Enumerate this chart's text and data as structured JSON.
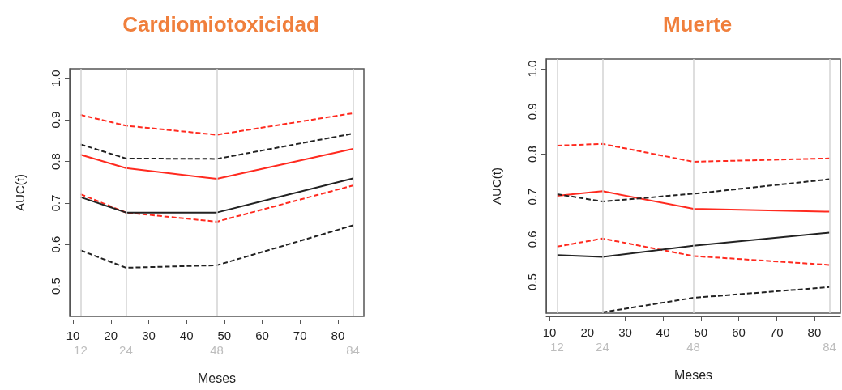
{
  "chart_data": [
    {
      "type": "line",
      "title": "Cardiomiotoxicidad",
      "xlabel": "Meses",
      "ylabel": "AUC(t)",
      "x": [
        12,
        24,
        48,
        84
      ],
      "xlim": [
        9.12,
        86.88
      ],
      "xticks": [
        10,
        20,
        30,
        40,
        50,
        60,
        70,
        80
      ],
      "ylim": [
        0.427,
        1.023
      ],
      "yticks": [
        0.5,
        0.6,
        0.7,
        0.8,
        0.9,
        {
          "value": 1.0,
          "label": "1.0"
        }
      ],
      "grid": false,
      "marker": "none",
      "ref_lines": [
        {
          "axis": "x",
          "value": 12,
          "label": "12",
          "color": "#d3d3d3"
        },
        {
          "axis": "x",
          "value": 24,
          "label": "24",
          "color": "#d3d3d3"
        },
        {
          "axis": "x",
          "value": 48,
          "label": "48",
          "color": "#d3d3d3"
        },
        {
          "axis": "x",
          "value": 84,
          "label": "84",
          "color": "#d3d3d3"
        },
        {
          "axis": "y",
          "value": 0.5,
          "color": "#333333",
          "line_style": "dotted"
        }
      ],
      "series": [
        {
          "color": "#ff2a1f",
          "line_style": "dashed",
          "values": [
            0.912,
            0.886,
            0.864,
            0.916
          ]
        },
        {
          "color": "#ff2a1f",
          "line_style": "solid",
          "values": [
            0.816,
            0.784,
            0.758,
            0.83
          ]
        },
        {
          "color": "#ff2a1f",
          "line_style": "dashed",
          "values": [
            0.721,
            0.677,
            0.655,
            0.742
          ]
        },
        {
          "color": "#222222",
          "line_style": "dashed",
          "values": [
            0.841,
            0.807,
            0.806,
            0.867
          ]
        },
        {
          "color": "#222222",
          "line_style": "solid",
          "values": [
            0.714,
            0.677,
            0.677,
            0.759
          ]
        },
        {
          "color": "#222222",
          "line_style": "dashed",
          "values": [
            0.586,
            0.544,
            0.55,
            0.646
          ]
        }
      ]
    },
    {
      "type": "line",
      "title": "Muerte",
      "xlabel": "Meses",
      "ylabel": "AUC(t)",
      "x": [
        12,
        24,
        48,
        84
      ],
      "xlim": [
        9.12,
        86.88
      ],
      "xticks": [
        10,
        20,
        30,
        40,
        50,
        60,
        70,
        80
      ],
      "ylim": [
        0.427,
        1.023
      ],
      "yticks": [
        0.5,
        0.6,
        0.7,
        0.8,
        0.9,
        {
          "value": 1.0,
          "label": "1.0"
        }
      ],
      "grid": false,
      "marker": "none",
      "ref_lines": [
        {
          "axis": "x",
          "value": 12,
          "label": "12",
          "color": "#d3d3d3"
        },
        {
          "axis": "x",
          "value": 24,
          "label": "24",
          "color": "#d3d3d3"
        },
        {
          "axis": "x",
          "value": 48,
          "label": "48",
          "color": "#d3d3d3"
        },
        {
          "axis": "x",
          "value": 84,
          "label": "84",
          "color": "#d3d3d3"
        },
        {
          "axis": "y",
          "value": 0.5,
          "color": "#333333",
          "line_style": "dotted"
        }
      ],
      "series": [
        {
          "color": "#ff2a1f",
          "line_style": "dashed",
          "values": [
            0.82,
            0.824,
            0.782,
            0.79
          ]
        },
        {
          "color": "#ff2a1f",
          "line_style": "solid",
          "values": [
            0.702,
            0.713,
            0.672,
            0.665
          ]
        },
        {
          "color": "#ff2a1f",
          "line_style": "dashed",
          "values": [
            0.583,
            0.602,
            0.561,
            0.54
          ]
        },
        {
          "color": "#222222",
          "line_style": "dashed",
          "values": [
            0.706,
            0.689,
            0.707,
            0.741
          ]
        },
        {
          "color": "#222222",
          "line_style": "solid",
          "values": [
            0.563,
            0.559,
            0.585,
            0.616
          ]
        },
        {
          "color": "#222222",
          "line_style": "dashed",
          "values": [
            null,
            0.429,
            0.463,
            0.488
          ]
        }
      ]
    }
  ]
}
